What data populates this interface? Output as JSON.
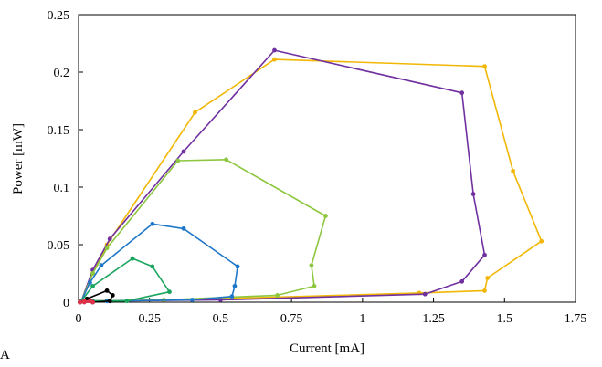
{
  "chart_data": {
    "type": "scatter",
    "panel_label": "A",
    "xlabel": "Current [mA]",
    "ylabel": "Power [mW]",
    "xlim": [
      0,
      1.75
    ],
    "ylim": [
      0,
      0.25
    ],
    "grid": false,
    "x_ticks": [
      0,
      0.25,
      0.5,
      0.75,
      1,
      1.25,
      1.5,
      1.75
    ],
    "x_tick_labels": [
      "0",
      "0.25",
      "0.5",
      "0.75",
      "1",
      "1.25",
      "1.5",
      "1.75"
    ],
    "y_ticks": [
      0,
      0.05,
      0.1,
      0.15,
      0.2,
      0.25
    ],
    "y_tick_labels": [
      "0",
      "0.05",
      "0.1",
      "0.15",
      "0.2",
      "0.25"
    ],
    "series": [
      {
        "color": "#F2B705",
        "points": [
          [
            0.01,
            0.001
          ],
          [
            0.05,
            0.025
          ],
          [
            0.1,
            0.05
          ],
          [
            0.41,
            0.165
          ],
          [
            0.69,
            0.211
          ],
          [
            1.43,
            0.205
          ],
          [
            1.53,
            0.114
          ],
          [
            1.63,
            0.053
          ],
          [
            1.44,
            0.021
          ],
          [
            1.43,
            0.01
          ],
          [
            1.2,
            0.008
          ],
          [
            0.5,
            0.003
          ],
          [
            0.1,
            0.001
          ],
          [
            0.01,
            0.001
          ]
        ]
      },
      {
        "color": "#7030A0",
        "points": [
          [
            0.01,
            0.001
          ],
          [
            0.05,
            0.028
          ],
          [
            0.11,
            0.055
          ],
          [
            0.37,
            0.131
          ],
          [
            0.69,
            0.219
          ],
          [
            1.35,
            0.182
          ],
          [
            1.39,
            0.094
          ],
          [
            1.43,
            0.041
          ],
          [
            1.35,
            0.018
          ],
          [
            1.22,
            0.007
          ],
          [
            0.5,
            0.002
          ],
          [
            0.1,
            0.001
          ],
          [
            0.01,
            0.001
          ]
        ]
      },
      {
        "color": "#8DC63F",
        "points": [
          [
            0.01,
            0.001
          ],
          [
            0.05,
            0.025
          ],
          [
            0.1,
            0.047
          ],
          [
            0.35,
            0.123
          ],
          [
            0.52,
            0.124
          ],
          [
            0.87,
            0.075
          ],
          [
            0.82,
            0.032
          ],
          [
            0.83,
            0.014
          ],
          [
            0.7,
            0.006
          ],
          [
            0.3,
            0.002
          ],
          [
            0.05,
            0.001
          ],
          [
            0.01,
            0.001
          ]
        ]
      },
      {
        "color": "#1F77C8",
        "points": [
          [
            0.01,
            0.001
          ],
          [
            0.04,
            0.017
          ],
          [
            0.08,
            0.032
          ],
          [
            0.26,
            0.068
          ],
          [
            0.37,
            0.064
          ],
          [
            0.56,
            0.031
          ],
          [
            0.55,
            0.014
          ],
          [
            0.54,
            0.005
          ],
          [
            0.4,
            0.002
          ],
          [
            0.1,
            0.001
          ],
          [
            0.01,
            0.001
          ]
        ]
      },
      {
        "color": "#1AA55F",
        "points": [
          [
            0.01,
            0.001
          ],
          [
            0.05,
            0.014
          ],
          [
            0.19,
            0.038
          ],
          [
            0.26,
            0.031
          ],
          [
            0.32,
            0.009
          ],
          [
            0.17,
            0.001
          ],
          [
            0.05,
            0.001
          ],
          [
            0.01,
            0.001
          ]
        ]
      },
      {
        "color": "#000000",
        "points": [
          [
            0.005,
            0.0
          ],
          [
            0.03,
            0.003
          ],
          [
            0.1,
            0.01
          ],
          [
            0.12,
            0.006
          ],
          [
            0.11,
            0.001
          ],
          [
            0.05,
            0.0
          ],
          [
            0.005,
            0.0
          ]
        ]
      },
      {
        "color": "#E0304A",
        "points": [
          [
            0.005,
            0.0
          ],
          [
            0.02,
            0.001
          ],
          [
            0.04,
            0.001
          ],
          [
            0.05,
            0.0
          ],
          [
            0.02,
            0.0
          ],
          [
            0.005,
            0.0
          ]
        ]
      }
    ]
  }
}
